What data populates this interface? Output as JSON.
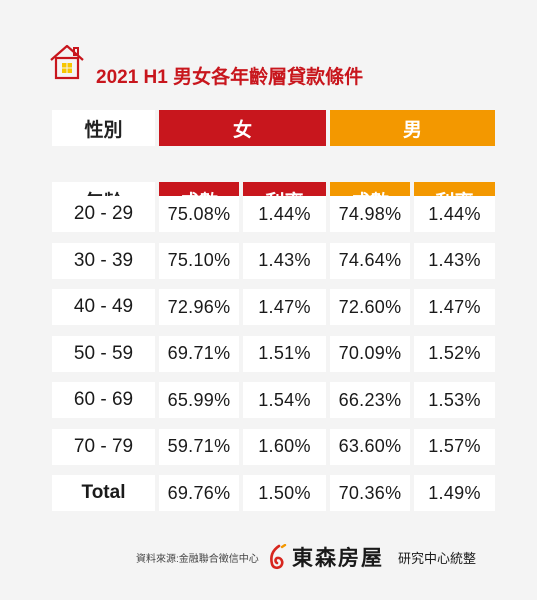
{
  "title": "2021 H1 男女各年齡層貸款條件",
  "header": {
    "gender_label": "性別",
    "age_label": "年齡",
    "female": "女",
    "male": "男",
    "female_col1": "成數",
    "female_col2": "利率",
    "male_col1": "成數",
    "male_col2": "利率"
  },
  "rows": [
    {
      "age": "20 - 29",
      "f_ratio": "75.08%",
      "f_rate": "1.44%",
      "m_ratio": "74.98%",
      "m_rate": "1.44%"
    },
    {
      "age": "30 - 39",
      "f_ratio": "75.10%",
      "f_rate": "1.43%",
      "m_ratio": "74.64%",
      "m_rate": "1.43%"
    },
    {
      "age": "40 - 49",
      "f_ratio": "72.96%",
      "f_rate": "1.47%",
      "m_ratio": "72.60%",
      "m_rate": "1.47%"
    },
    {
      "age": "50 - 59",
      "f_ratio": "69.71%",
      "f_rate": "1.51%",
      "m_ratio": "70.09%",
      "m_rate": "1.52%"
    },
    {
      "age": "60 - 69",
      "f_ratio": "65.99%",
      "f_rate": "1.54%",
      "m_ratio": "66.23%",
      "m_rate": "1.53%"
    },
    {
      "age": "70 - 79",
      "f_ratio": "59.71%",
      "f_rate": "1.60%",
      "m_ratio": "63.60%",
      "m_rate": "1.57%"
    },
    {
      "age": "Total",
      "f_ratio": "69.76%",
      "f_rate": "1.50%",
      "m_ratio": "70.36%",
      "m_rate": "1.49%"
    }
  ],
  "footer": {
    "source": "資料來源:金融聯合徵信中心",
    "brand": "東森房屋",
    "brand_sub": "研究中心統整"
  },
  "colors": {
    "female": "#c8161d",
    "male": "#f39800",
    "accent": "#c8161d"
  },
  "icons": {
    "header_icon": "house-icon",
    "logo": "ettoday-logo-mark"
  }
}
